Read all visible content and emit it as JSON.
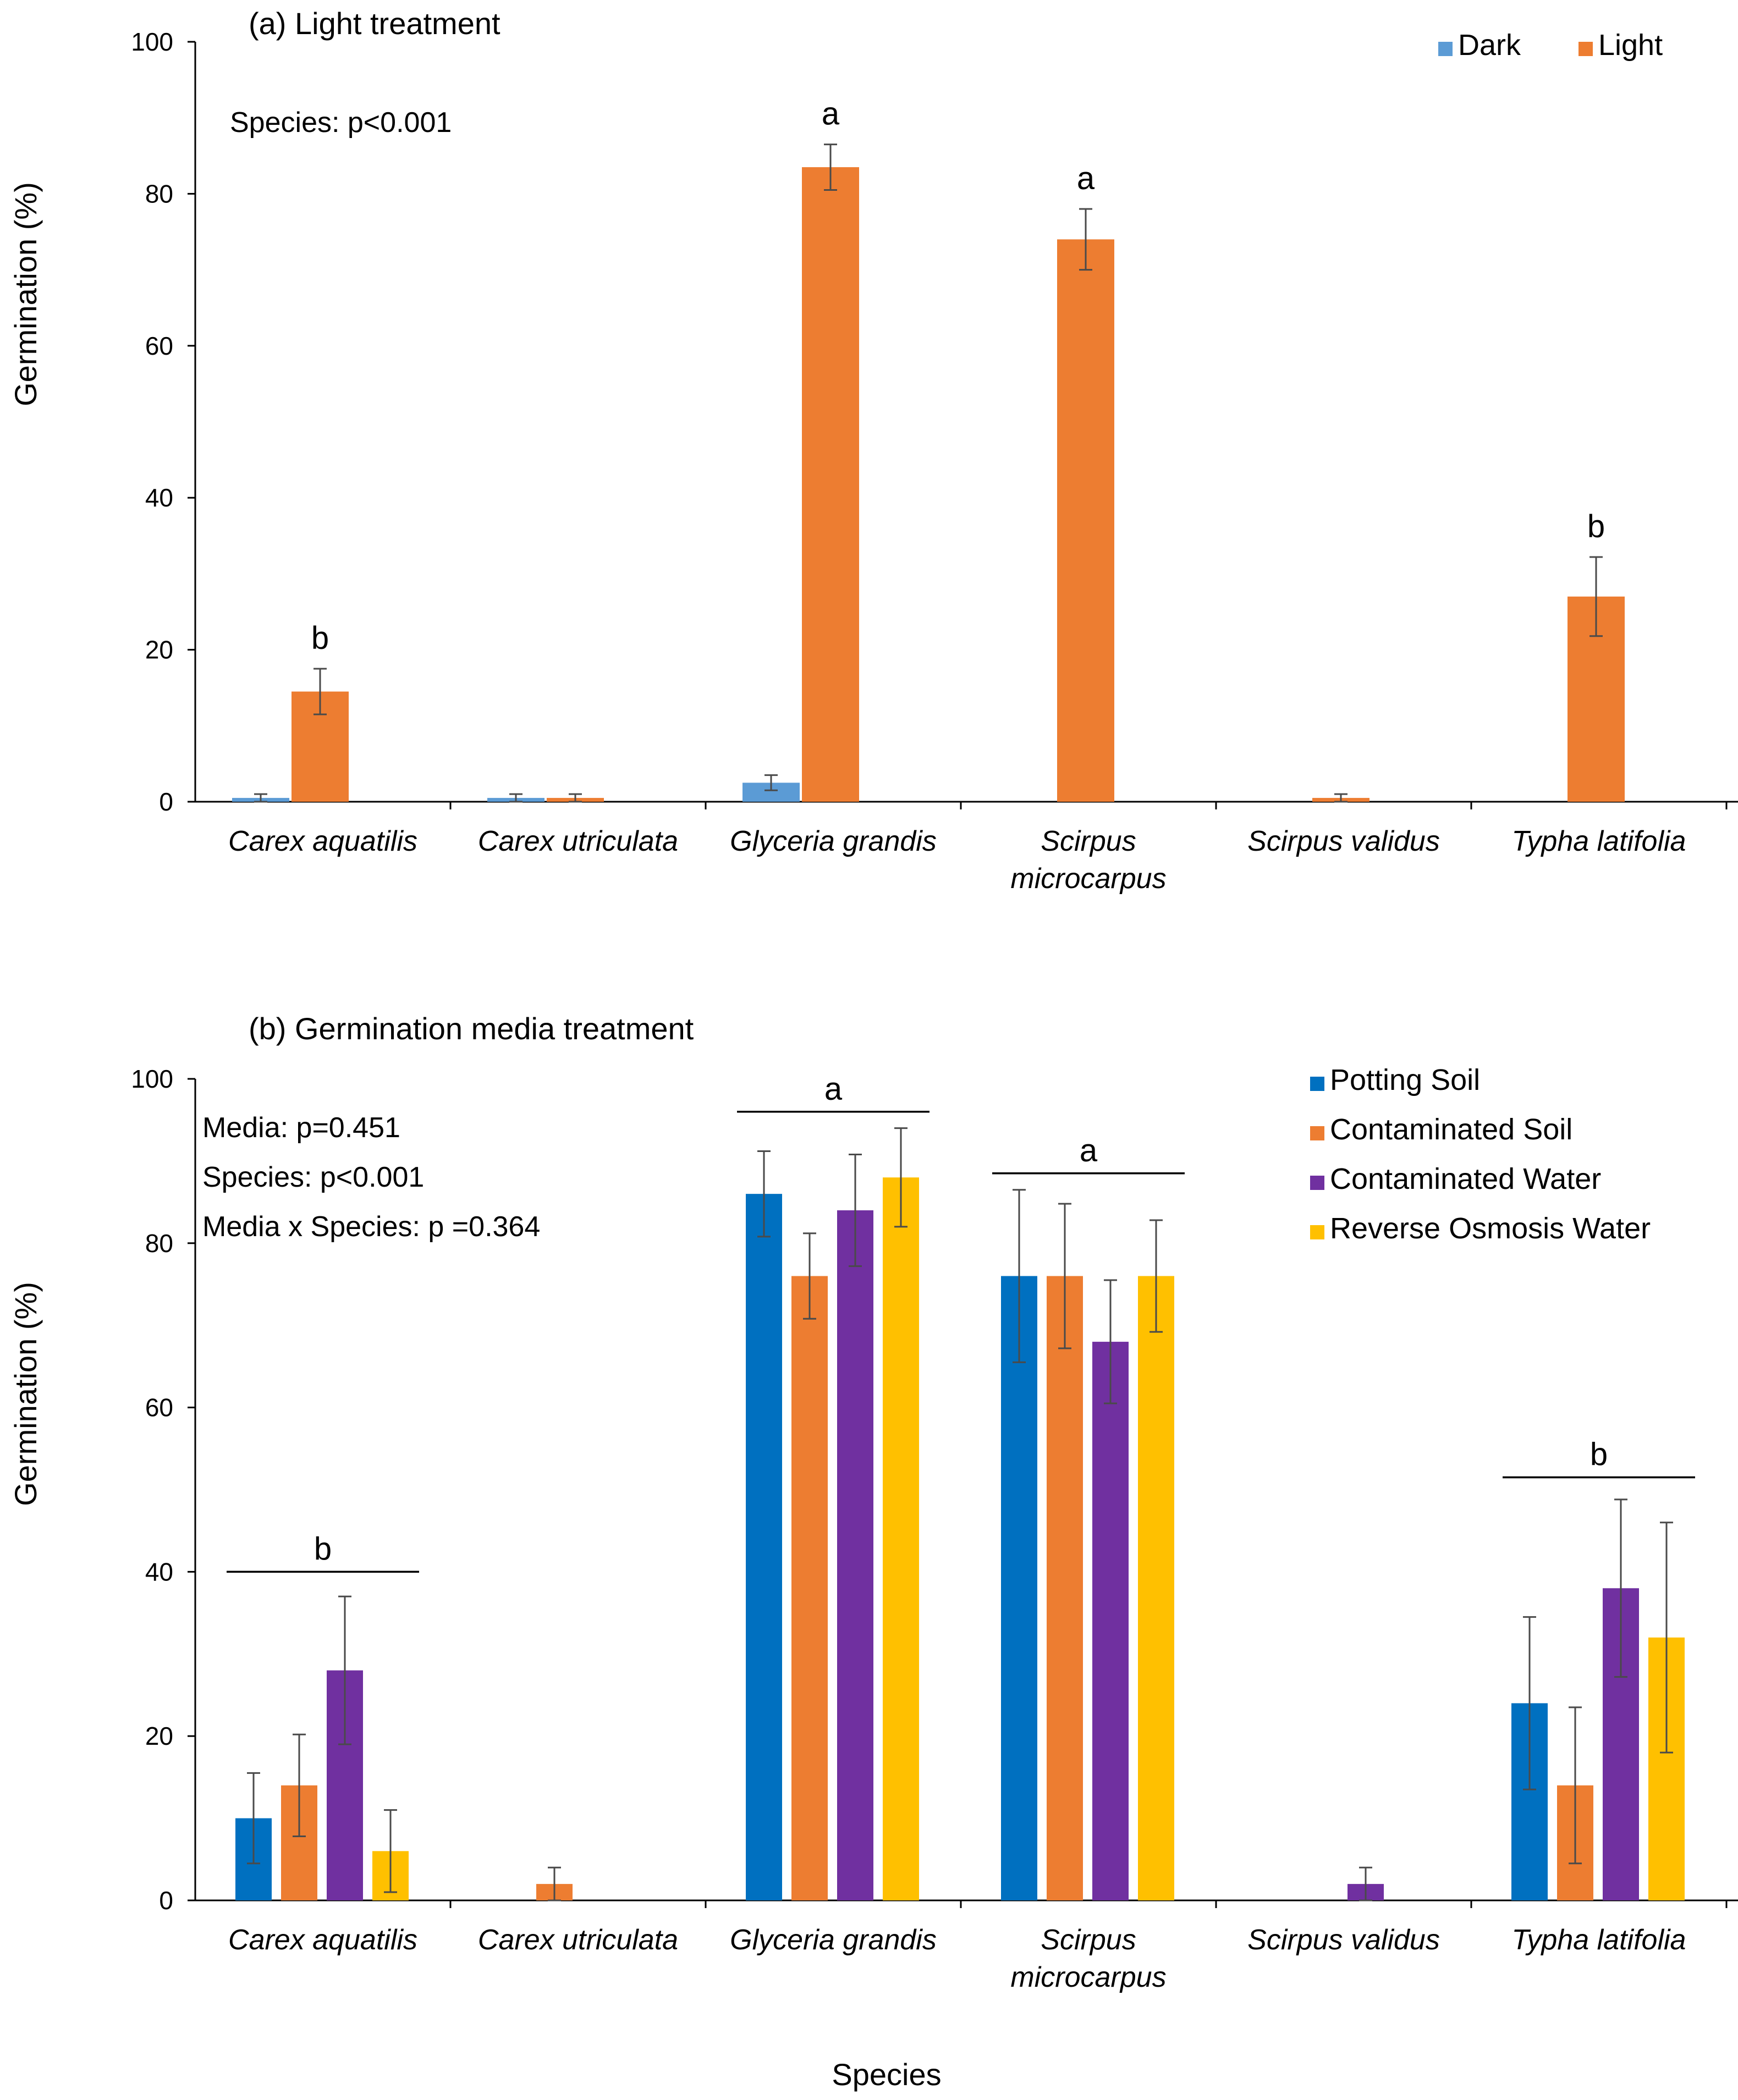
{
  "chart_data": [
    {
      "type": "bar",
      "title": "(a) Light treatment",
      "ylabel": "Germination (%)",
      "ylim": [
        0,
        100
      ],
      "yticks": [
        0,
        20,
        40,
        60,
        80,
        100
      ],
      "categories": [
        [
          "Carex aquatilis"
        ],
        [
          "Carex utriculata"
        ],
        [
          "Glyceria grandis"
        ],
        [
          "Scirpus",
          "microcarpus"
        ],
        [
          "Scirpus validus"
        ],
        [
          "Typha latifolia"
        ]
      ],
      "series": [
        {
          "name": "Dark",
          "color": "#5B9BD5",
          "values": [
            0.5,
            0.5,
            2.5,
            0,
            0,
            0
          ],
          "errors": [
            0.5,
            0.5,
            1,
            0,
            0,
            0
          ]
        },
        {
          "name": "Light",
          "color": "#ED7D31",
          "values": [
            14.5,
            0.5,
            83.5,
            74,
            0.5,
            27
          ],
          "errors": [
            3,
            0.5,
            3,
            4,
            0.5,
            5.2
          ]
        }
      ],
      "annotations": [
        "Species: p<0.001"
      ],
      "significance": [
        {
          "category": 0,
          "label": "b"
        },
        {
          "category": 2,
          "label": "a"
        },
        {
          "category": 3,
          "label": "a"
        },
        {
          "category": 5,
          "label": "b"
        }
      ],
      "legend_position": "top-right"
    },
    {
      "type": "bar",
      "title": "(b) Germination media treatment",
      "ylabel": "Germination (%)",
      "xlabel": "Species",
      "ylim": [
        0,
        100
      ],
      "yticks": [
        0,
        20,
        40,
        60,
        80,
        100
      ],
      "categories": [
        [
          "Carex aquatilis"
        ],
        [
          "Carex utriculata"
        ],
        [
          "Glyceria grandis"
        ],
        [
          "Scirpus",
          "microcarpus"
        ],
        [
          "Scirpus validus"
        ],
        [
          "Typha latifolia"
        ]
      ],
      "series": [
        {
          "name": "Potting Soil",
          "color": "#0070C0",
          "values": [
            10,
            0,
            86,
            76,
            0,
            24
          ],
          "errors": [
            5.5,
            0,
            5.2,
            10.5,
            0,
            10.5
          ]
        },
        {
          "name": "Contaminated Soil",
          "color": "#ED7D31",
          "values": [
            14,
            2,
            76,
            76,
            0,
            14
          ],
          "errors": [
            6.2,
            2,
            5.2,
            8.8,
            0,
            9.5
          ]
        },
        {
          "name": "Contaminated Water",
          "color": "#7030A0",
          "values": [
            28,
            0,
            84,
            68,
            2,
            38
          ],
          "errors": [
            9,
            0,
            6.8,
            7.5,
            2,
            10.8
          ]
        },
        {
          "name": "Reverse Osmosis Water",
          "color": "#FFC000",
          "values": [
            6,
            0,
            88,
            76,
            0,
            32
          ],
          "errors": [
            5,
            0,
            6,
            6.8,
            0,
            14
          ]
        }
      ],
      "annotations": [
        "Media: p=0.451",
        "Species: p<0.001",
        "Media x Species: p =0.364"
      ],
      "significance": [
        {
          "category": 0,
          "label": "b",
          "level": 40
        },
        {
          "category": 2,
          "label": "a",
          "level": 96
        },
        {
          "category": 3,
          "label": "a",
          "level": 88.5
        },
        {
          "category": 5,
          "label": "b",
          "level": 51.5
        }
      ],
      "legend_position": "top-right"
    }
  ]
}
